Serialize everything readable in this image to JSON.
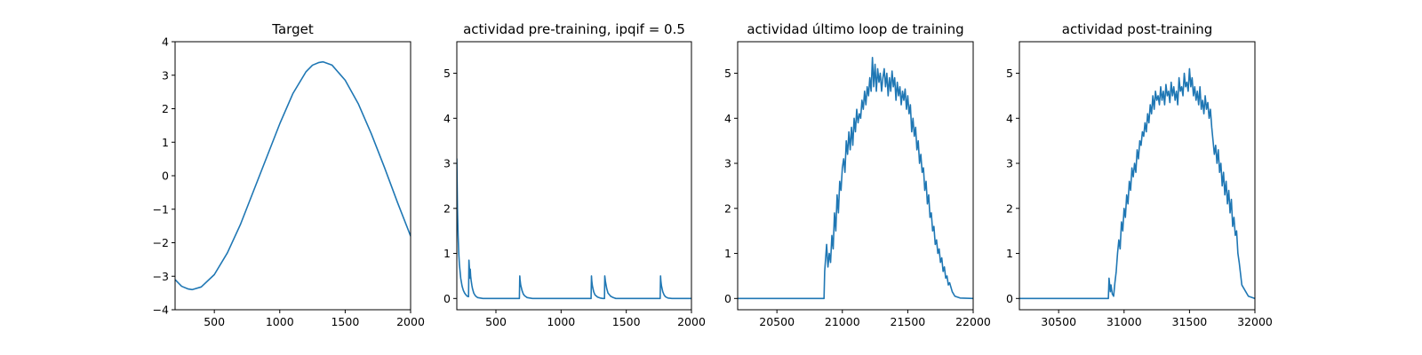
{
  "figure": {
    "line_color": "#1f77b4"
  },
  "chart_data": [
    {
      "type": "line",
      "title": "Target",
      "xlabel": "",
      "ylabel": "",
      "xlim": [
        200,
        2000
      ],
      "ylim": [
        -4,
        4
      ],
      "xticks": [
        500,
        1000,
        1500,
        2000
      ],
      "yticks": [
        -4,
        -3,
        -2,
        -1,
        0,
        1,
        2,
        3,
        4
      ],
      "series": [
        {
          "x": [
            200,
            250,
            300,
            330,
            400,
            500,
            600,
            700,
            800,
            900,
            1000,
            1100,
            1200,
            1250,
            1300,
            1330,
            1400,
            1500,
            1600,
            1700,
            1800,
            1900,
            2000
          ],
          "y": [
            -3.1,
            -3.3,
            -3.38,
            -3.4,
            -3.32,
            -2.95,
            -2.3,
            -1.45,
            -0.45,
            0.55,
            1.55,
            2.45,
            3.1,
            3.3,
            3.38,
            3.4,
            3.3,
            2.85,
            2.15,
            1.25,
            0.25,
            -0.8,
            -1.8
          ]
        }
      ],
      "grid": false
    },
    {
      "type": "line",
      "title": "actividad pre-training, ipqif = 0.5",
      "xlabel": "",
      "ylabel": "",
      "xlim": [
        200,
        2000
      ],
      "ylim": [
        -0.25,
        5.7
      ],
      "xticks": [
        500,
        1000,
        1500,
        2000
      ],
      "yticks": [
        0,
        1,
        2,
        3,
        4,
        5
      ],
      "series": [
        {
          "x": [
            200,
            205,
            210,
            215,
            220,
            230,
            240,
            250,
            260,
            270,
            280,
            290,
            293,
            296,
            300,
            303,
            306,
            310,
            315,
            320,
            330,
            340,
            350,
            360,
            380,
            400,
            680,
            683,
            685,
            690,
            700,
            710,
            720,
            740,
            760,
            780,
            1230,
            1233,
            1235,
            1240,
            1250,
            1260,
            1280,
            1300,
            1320,
            1333,
            1335,
            1340,
            1350,
            1360,
            1380,
            1400,
            1420,
            1760,
            1763,
            1765,
            1770,
            1780,
            1790,
            1800,
            1820,
            1850,
            1900,
            2000
          ],
          "y": [
            3.1,
            2.0,
            1.4,
            1.0,
            0.75,
            0.45,
            0.28,
            0.18,
            0.12,
            0.08,
            0.05,
            0.04,
            0.85,
            0.7,
            0.45,
            0.65,
            0.5,
            0.4,
            0.3,
            0.22,
            0.12,
            0.07,
            0.04,
            0.02,
            0.01,
            0.0,
            0.0,
            0.5,
            0.42,
            0.3,
            0.18,
            0.1,
            0.06,
            0.02,
            0.01,
            0.0,
            0.0,
            0.5,
            0.4,
            0.28,
            0.15,
            0.08,
            0.03,
            0.01,
            0.0,
            0.0,
            0.5,
            0.38,
            0.22,
            0.12,
            0.05,
            0.02,
            0.0,
            0.0,
            0.5,
            0.4,
            0.28,
            0.15,
            0.08,
            0.04,
            0.01,
            0.0,
            0.0,
            0.0
          ]
        }
      ],
      "grid": false
    },
    {
      "type": "line",
      "title": "actividad último loop de training",
      "xlabel": "",
      "ylabel": "",
      "xlim": [
        20200,
        22000
      ],
      "ylim": [
        -0.25,
        5.7
      ],
      "xticks": [
        20500,
        21000,
        21500,
        22000
      ],
      "yticks": [
        0,
        1,
        2,
        3,
        4,
        5
      ],
      "series": [
        {
          "x": [
            20200,
            20600,
            20860,
            20865,
            20880,
            20890,
            20900,
            20910,
            20920,
            20930,
            20940,
            20950,
            20960,
            20970,
            20980,
            20990,
            21000,
            21010,
            21020,
            21030,
            21040,
            21050,
            21060,
            21070,
            21080,
            21090,
            21100,
            21110,
            21120,
            21130,
            21140,
            21150,
            21160,
            21170,
            21180,
            21190,
            21200,
            21210,
            21220,
            21230,
            21240,
            21250,
            21260,
            21270,
            21280,
            21290,
            21300,
            21310,
            21320,
            21330,
            21340,
            21350,
            21360,
            21370,
            21380,
            21390,
            21400,
            21410,
            21420,
            21430,
            21440,
            21450,
            21460,
            21470,
            21480,
            21490,
            21500,
            21510,
            21520,
            21530,
            21540,
            21550,
            21560,
            21570,
            21580,
            21590,
            21600,
            21610,
            21620,
            21630,
            21640,
            21650,
            21660,
            21670,
            21680,
            21690,
            21700,
            21710,
            21720,
            21730,
            21740,
            21750,
            21760,
            21770,
            21780,
            21790,
            21800,
            21810,
            21820,
            21840,
            21860,
            21900,
            22000
          ],
          "y": [
            0.0,
            0.0,
            0.0,
            0.6,
            1.2,
            0.7,
            1.0,
            0.8,
            1.4,
            1.1,
            1.9,
            1.5,
            2.3,
            1.9,
            2.6,
            2.4,
            2.9,
            3.1,
            2.8,
            3.5,
            3.2,
            3.7,
            3.3,
            3.8,
            3.4,
            4.0,
            3.7,
            4.2,
            3.9,
            4.1,
            4.0,
            4.4,
            4.2,
            4.6,
            4.3,
            4.7,
            4.5,
            4.9,
            4.6,
            5.35,
            4.7,
            5.2,
            4.6,
            5.1,
            4.8,
            5.0,
            4.6,
            4.9,
            5.1,
            4.7,
            5.0,
            4.5,
            4.9,
            4.6,
            5.05,
            4.7,
            4.9,
            4.4,
            4.8,
            4.5,
            4.7,
            4.3,
            4.6,
            4.4,
            4.65,
            4.2,
            4.5,
            4.1,
            4.3,
            3.7,
            4.0,
            3.6,
            3.8,
            3.3,
            3.5,
            3.0,
            3.2,
            2.8,
            2.9,
            2.4,
            2.6,
            2.1,
            2.3,
            1.8,
            1.9,
            1.5,
            1.6,
            1.2,
            1.3,
            1.0,
            1.1,
            0.8,
            0.9,
            0.6,
            0.7,
            0.45,
            0.5,
            0.3,
            0.35,
            0.15,
            0.05,
            0.01,
            0.0
          ]
        }
      ],
      "grid": false
    },
    {
      "type": "line",
      "title": "actividad post-training",
      "xlabel": "",
      "ylabel": "",
      "xlim": [
        30200,
        32000
      ],
      "ylim": [
        -0.25,
        5.7
      ],
      "xticks": [
        30500,
        31000,
        31500,
        32000
      ],
      "yticks": [
        0,
        1,
        2,
        3,
        4,
        5
      ],
      "series": [
        {
          "x": [
            30200,
            30600,
            30880,
            30885,
            30895,
            30900,
            30910,
            30920,
            30930,
            30940,
            30950,
            30960,
            30970,
            30980,
            30990,
            31000,
            31010,
            31020,
            31030,
            31040,
            31050,
            31060,
            31070,
            31080,
            31090,
            31100,
            31110,
            31120,
            31130,
            31140,
            31150,
            31160,
            31170,
            31180,
            31190,
            31200,
            31210,
            31220,
            31230,
            31240,
            31250,
            31260,
            31270,
            31280,
            31290,
            31300,
            31310,
            31320,
            31330,
            31340,
            31350,
            31360,
            31370,
            31380,
            31390,
            31400,
            31410,
            31420,
            31430,
            31440,
            31450,
            31460,
            31470,
            31480,
            31490,
            31500,
            31510,
            31520,
            31530,
            31540,
            31550,
            31560,
            31570,
            31580,
            31590,
            31600,
            31610,
            31620,
            31630,
            31640,
            31650,
            31660,
            31670,
            31680,
            31690,
            31700,
            31710,
            31720,
            31730,
            31740,
            31750,
            31760,
            31770,
            31780,
            31790,
            31800,
            31810,
            31820,
            31830,
            31840,
            31850,
            31860,
            31870,
            31880,
            31900,
            31950,
            32000
          ],
          "y": [
            0.0,
            0.0,
            0.0,
            0.45,
            0.15,
            0.3,
            0.1,
            0.05,
            0.35,
            0.6,
            1.0,
            1.3,
            1.1,
            1.7,
            1.5,
            2.0,
            1.8,
            2.3,
            2.1,
            2.6,
            2.4,
            2.9,
            2.7,
            3.0,
            2.8,
            3.3,
            3.1,
            3.5,
            3.4,
            3.7,
            3.6,
            3.9,
            3.7,
            4.1,
            3.9,
            4.3,
            4.1,
            4.5,
            4.2,
            4.6,
            4.4,
            4.5,
            4.3,
            4.7,
            4.4,
            4.6,
            4.3,
            4.75,
            4.5,
            4.6,
            4.35,
            4.8,
            4.5,
            4.7,
            4.4,
            4.6,
            4.3,
            4.9,
            4.6,
            4.7,
            4.5,
            5.0,
            4.7,
            4.8,
            4.6,
            5.1,
            4.7,
            4.9,
            4.5,
            4.7,
            4.4,
            4.6,
            4.3,
            4.7,
            4.2,
            4.4,
            4.1,
            4.5,
            4.2,
            4.35,
            4.0,
            4.2,
            3.8,
            3.5,
            3.2,
            3.4,
            3.0,
            3.3,
            2.8,
            3.0,
            2.5,
            2.8,
            2.3,
            2.6,
            2.1,
            2.4,
            1.9,
            2.2,
            1.6,
            1.8,
            1.4,
            1.5,
            1.0,
            0.8,
            0.3,
            0.05,
            0.0
          ]
        }
      ],
      "grid": false
    }
  ]
}
